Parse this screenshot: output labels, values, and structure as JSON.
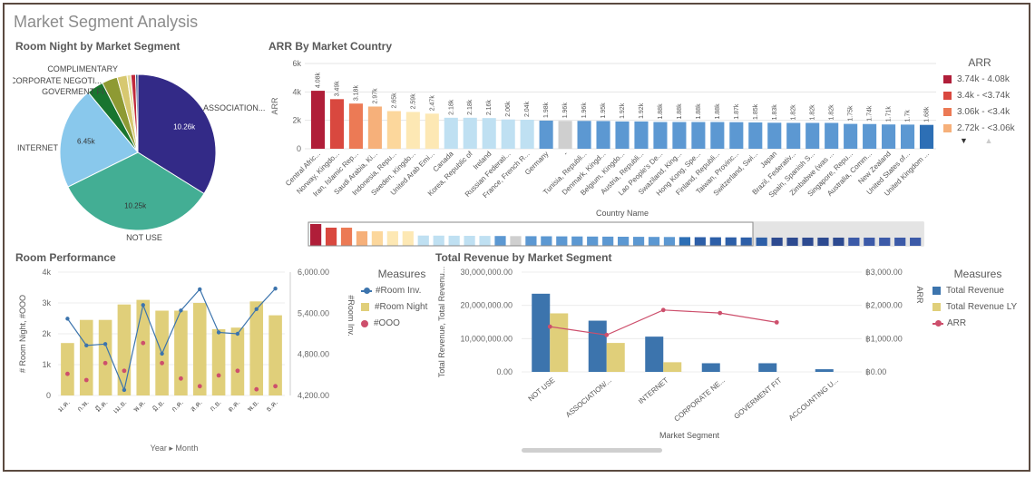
{
  "page": {
    "title": "Market Segment Analysis"
  },
  "panels": {
    "pie_title": "Room Night by Market Segment",
    "arr_title": "ARR By Market Country",
    "perf_title": "Room Performance",
    "rev_title": "Total Revenue by Market Segment"
  },
  "colors": {
    "navy": "#332a87",
    "teal": "#43ae94",
    "lightblue": "#89c8ec",
    "darkgreen": "#19752f",
    "olive": "#8e9a33",
    "sand": "#d7c870",
    "red": "#c02a3c",
    "blue": "#3c74ad",
    "gold": "#e0cf7a",
    "pink": "#cd4f6c"
  },
  "chart_data": [
    {
      "id": "pie",
      "type": "pie",
      "title": "Room Night by Market Segment",
      "slices": [
        {
          "label": "ASSOCIATION...",
          "value": 10260,
          "value_label": "10.26k",
          "color": "#332a87"
        },
        {
          "label": "NOT USE",
          "value": 10250,
          "value_label": "10.25k",
          "color": "#43ae94"
        },
        {
          "label": "INTERNET",
          "value": 6450,
          "value_label": "6.45k",
          "color": "#89c8ec"
        },
        {
          "label": "GOVERMENT FIT",
          "value": 1050,
          "value_label": "",
          "color": "#19752f"
        },
        {
          "label": "CORPORATE NEGOTI...",
          "value": 980,
          "value_label": "",
          "color": "#8e9a33"
        },
        {
          "label": "COMPLIMENTARY",
          "value": 620,
          "value_label": "",
          "color": "#d7c870"
        },
        {
          "label": "",
          "value": 240,
          "value_label": "",
          "color": "#e8dfa0"
        },
        {
          "label": "",
          "value": 300,
          "value_label": "",
          "color": "#c02a3c"
        },
        {
          "label": "",
          "value": 140,
          "value_label": "",
          "color": "#2d4a86"
        }
      ]
    },
    {
      "id": "arr",
      "type": "bar",
      "title": "ARR By Market Country",
      "xlabel": "Country Name",
      "ylabel": "ARR",
      "ylim": [
        0,
        6000
      ],
      "yticks": [
        {
          "v": 0,
          "t": "0"
        },
        {
          "v": 2000,
          "t": "2k"
        },
        {
          "v": 4000,
          "t": "4k"
        },
        {
          "v": 6000,
          "t": "6k"
        }
      ],
      "categories": [
        "Central Afric...",
        "Norway, Kingdo...",
        "Iran, Islamic Rep...",
        "Saudi Arabia, Ki...",
        "Indonesia, Repu...",
        "Sweden, Kingdo...",
        "United Arab Emi...",
        "Canada",
        "Korea, Republic of",
        "Ireland",
        "Russian Federati...",
        "France, French R...",
        "Germany",
        "-",
        "Tunisia, Republi...",
        "Denmark, Kingd...",
        "Belgium, Kingdo...",
        "Austria, Republi...",
        "Lao People's De...",
        "Swaziland, King...",
        "Hong Kong, Spe...",
        "Finland, Republi...",
        "Taiwan, Provinc...",
        "Switzerland, Swi...",
        "Japan",
        "Brazil, Federativ...",
        "Spain, Spanish S...",
        "Zimbabwe (was ...",
        "Singapore, Repu...",
        "Australia, Comm...",
        "New Zealand",
        "United States of...",
        "United Kingdom ..."
      ],
      "values": [
        4080,
        3490,
        3180,
        2970,
        2650,
        2590,
        2470,
        2180,
        2180,
        2160,
        2060,
        2040,
        1980,
        1960,
        1960,
        1950,
        1920,
        1920,
        1880,
        1880,
        1880,
        1880,
        1870,
        1850,
        1830,
        1820,
        1820,
        1820,
        1750,
        1740,
        1710,
        1700,
        1680
      ],
      "value_labels": [
        "4.08k",
        "3.49k",
        "3.18k",
        "2.97k",
        "2.65k",
        "2.59k",
        "2.47k",
        "2.18k",
        "2.18k",
        "2.16k",
        "2.06k",
        "2.04k",
        "1.98k",
        "1.96k",
        "1.96k",
        "1.95k",
        "1.92k",
        "1.92k",
        "1.88k",
        "1.88k",
        "1.88k",
        "1.88k",
        "1.87k",
        "1.85k",
        "1.83k",
        "1.82k",
        "1.82k",
        "1.82k",
        "1.75k",
        "1.74k",
        "1.71k",
        "1.7k",
        "1.68k"
      ],
      "colors": [
        "#b01e39",
        "#d9483f",
        "#ec7a55",
        "#f6b07a",
        "#fcd79c",
        "#fde8b4",
        "#fde8b4",
        "#bfe0f2",
        "#bfe0f2",
        "#bfe0f2",
        "#bfe0f2",
        "#bfe0f2",
        "#5c98d2",
        "#cfcfcf",
        "#5c98d2",
        "#5c98d2",
        "#5c98d2",
        "#5c98d2",
        "#5c98d2",
        "#5c98d2",
        "#5c98d2",
        "#5c98d2",
        "#5c98d2",
        "#5c98d2",
        "#5c98d2",
        "#5c98d2",
        "#5c98d2",
        "#5c98d2",
        "#5c98d2",
        "#5c98d2",
        "#5c98d2",
        "#5c98d2",
        "#2d6fb5"
      ],
      "legend": {
        "title": "ARR",
        "entries": [
          {
            "label": "3.74k - 4.08k",
            "color": "#b01e39"
          },
          {
            "label": "3.4k - <3.74k",
            "color": "#d9483f"
          },
          {
            "label": "3.06k - <3.4k",
            "color": "#ec7a55"
          },
          {
            "label": "2.72k - <3.06k",
            "color": "#f6b07a"
          }
        ]
      },
      "minimap_colors": [
        "#b01e39",
        "#d9483f",
        "#ec7a55",
        "#f6b07a",
        "#fcd79c",
        "#fde8b4",
        "#fde8b4",
        "#bfe0f2",
        "#bfe0f2",
        "#bfe0f2",
        "#bfe0f2",
        "#bfe0f2",
        "#5c98d2",
        "#cfcfcf",
        "#5c98d2",
        "#5c98d2",
        "#5c98d2",
        "#5c98d2",
        "#5c98d2",
        "#5c98d2",
        "#5c98d2",
        "#5c98d2",
        "#5c98d2",
        "#5c98d2",
        "#2d6fb5",
        "#2d5fa8",
        "#2d5fa8",
        "#2d5fa8",
        "#2d5fa8",
        "#2d5fa8",
        "#2d4a90",
        "#2d4a90",
        "#2d4a90",
        "#2d4a90",
        "#2d4a90",
        "#3c5aa8",
        "#3c5aa8",
        "#3c5aa8",
        "#3c5aa8",
        "#3c5aa8"
      ]
    },
    {
      "id": "perf",
      "type": "bar",
      "title": "Room Performance",
      "xlabel": "Year ▸ Month",
      "ylabel_left": "# Room Night, #OOO",
      "ylabel_right": "#Room Inv.",
      "categories": [
        "ม.ค.",
        "ก.พ.",
        "มี.ค.",
        "เม.ย.",
        "พ.ค.",
        "มิ.ย.",
        "ก.ค.",
        "ส.ค.",
        "ก.ย.",
        "ต.ค.",
        "พ.ย.",
        "ธ.ค."
      ],
      "ylim_left": [
        0,
        4000
      ],
      "yticks_left": [
        {
          "v": 0,
          "t": "0"
        },
        {
          "v": 1000,
          "t": "1k"
        },
        {
          "v": 2000,
          "t": "2k"
        },
        {
          "v": 3000,
          "t": "3k"
        },
        {
          "v": 4000,
          "t": "4k"
        }
      ],
      "ylim_right": [
        4200,
        6000
      ],
      "yticks_right": [
        {
          "v": 4200,
          "t": "4,200.00"
        },
        {
          "v": 4800,
          "t": "4,800.00"
        },
        {
          "v": 5400,
          "t": "5,400.00"
        },
        {
          "v": 6000,
          "t": "6,000.00"
        }
      ],
      "series": [
        {
          "name": "#Room Night",
          "kind": "bar",
          "axis": "left",
          "color": "#e0cf7a",
          "values": [
            1700,
            2450,
            2450,
            2950,
            3100,
            2750,
            2750,
            3000,
            2150,
            2200,
            3050,
            2600
          ]
        },
        {
          "name": "#Room Inv.",
          "kind": "line",
          "axis": "right",
          "color": "#3c74ad",
          "values": [
            5320,
            4930,
            4950,
            4280,
            5520,
            4810,
            5440,
            5750,
            5120,
            5100,
            5460,
            5760
          ]
        },
        {
          "name": "#OOO",
          "kind": "dots",
          "axis": "left",
          "color": "#cd4f6c",
          "values": [
            700,
            500,
            1050,
            800,
            1700,
            1050,
            550,
            300,
            650,
            800,
            200,
            300
          ]
        }
      ],
      "legend_title": "Measures"
    },
    {
      "id": "rev",
      "type": "bar",
      "title": "Total Revenue by Market Segment",
      "xlabel": "Market Segment",
      "ylabel_left": "Total Revenue, Total Revenu...",
      "ylabel_right": "ARR",
      "categories": [
        "NOT USE",
        "ASSOCIATION/...",
        "INTERNET",
        "CORPORATE NE...",
        "GOVERMENT FIT",
        "ACCOUNTING U..."
      ],
      "ylim_left": [
        0,
        30000000
      ],
      "yticks_left": [
        {
          "v": 0,
          "t": "0.00"
        },
        {
          "v": 10000000,
          "t": "10,000,000.00"
        },
        {
          "v": 20000000,
          "t": "20,000,000.00"
        },
        {
          "v": 30000000,
          "t": "30,000,000.00"
        }
      ],
      "ylim_right": [
        0,
        3000
      ],
      "yticks_right": [
        {
          "v": 0,
          "t": "฿0.00"
        },
        {
          "v": 1000,
          "t": "฿1,000.00"
        },
        {
          "v": 2000,
          "t": "฿2,000.00"
        },
        {
          "v": 3000,
          "t": "฿3,000.00"
        }
      ],
      "series": [
        {
          "name": "Total Revenue",
          "kind": "bar",
          "axis": "left",
          "color": "#3c74ad",
          "values": [
            23500000,
            15400000,
            10600000,
            2600000,
            2600000,
            800000
          ]
        },
        {
          "name": "Total Revenue LY",
          "kind": "bar",
          "axis": "left",
          "color": "#e0cf7a",
          "values": [
            17600000,
            8700000,
            2900000,
            0,
            0,
            0
          ]
        },
        {
          "name": "ARR",
          "kind": "line",
          "axis": "right",
          "color": "#cd4f6c",
          "values": [
            1360,
            1110,
            1860,
            1770,
            1490,
            null
          ]
        }
      ],
      "legend_title": "Measures"
    }
  ]
}
